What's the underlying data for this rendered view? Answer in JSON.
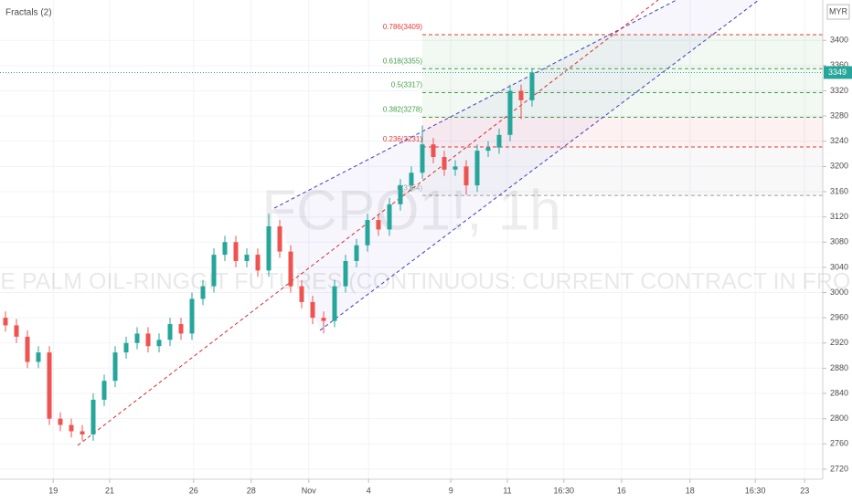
{
  "chart_data": {
    "type": "candlestick",
    "indicator_label": "Fractals (2)",
    "watermark_symbol": "FCPO1!, 1h",
    "watermark_name": "CRUDE PALM OIL-RINGGIT FUTURES (CONTINUOUS: CURRENT CONTRACT IN FRONT)",
    "currency": "MYR",
    "last_price": 3349,
    "up_color": "#26a69a",
    "down_color": "#ef5350",
    "x": [
      1,
      3,
      5,
      7,
      9,
      11,
      13,
      15,
      17,
      19,
      21,
      23,
      25,
      27,
      29,
      31,
      33,
      35,
      37,
      39,
      41,
      43,
      45,
      47,
      49,
      51,
      53,
      55,
      57,
      59,
      61,
      63,
      65,
      67,
      69,
      71,
      73,
      75,
      77,
      79,
      81,
      83,
      85,
      87,
      89,
      91,
      93,
      95,
      97
    ],
    "open": [
      2960,
      2948,
      2930,
      2890,
      2905,
      2800,
      2790,
      2780,
      2775,
      2830,
      2860,
      2905,
      2920,
      2935,
      2915,
      2925,
      2950,
      2935,
      2990,
      3010,
      3060,
      3080,
      3050,
      3060,
      3035,
      3105,
      3065,
      3010,
      2985,
      2960,
      2955,
      3010,
      3050,
      3075,
      3115,
      3100,
      3140,
      3170,
      3190,
      3235,
      3215,
      3195,
      3200,
      3170,
      3225,
      3230,
      3250,
      3320,
      3305
    ],
    "high": [
      2970,
      2958,
      2940,
      2915,
      2915,
      2810,
      2800,
      2790,
      2840,
      2870,
      2915,
      2930,
      2945,
      2945,
      2935,
      2960,
      2960,
      3000,
      3020,
      3070,
      3090,
      3090,
      3070,
      3070,
      3125,
      3115,
      3075,
      3020,
      2995,
      2970,
      3020,
      3060,
      3085,
      3125,
      3125,
      3150,
      3180,
      3200,
      3265,
      3245,
      3225,
      3210,
      3210,
      3235,
      3240,
      3260,
      3330,
      3330,
      3355
    ],
    "low": [
      2938,
      2920,
      2880,
      2880,
      2790,
      2780,
      2770,
      2765,
      2765,
      2820,
      2850,
      2895,
      2910,
      2905,
      2905,
      2915,
      2925,
      2925,
      2980,
      3000,
      3050,
      3040,
      3040,
      3025,
      3025,
      3055,
      3000,
      2975,
      2950,
      2935,
      2945,
      3000,
      3040,
      3065,
      3090,
      3090,
      3130,
      3160,
      3180,
      3205,
      3185,
      3185,
      3155,
      3160,
      3215,
      3220,
      3240,
      3275,
      3295
    ],
    "close": [
      2948,
      2930,
      2890,
      2905,
      2800,
      2790,
      2780,
      2775,
      2830,
      2860,
      2905,
      2920,
      2935,
      2915,
      2925,
      2950,
      2935,
      2990,
      3010,
      3060,
      3080,
      3050,
      3060,
      3035,
      3105,
      3065,
      3010,
      2985,
      2960,
      2955,
      3010,
      3050,
      3075,
      3115,
      3100,
      3140,
      3170,
      3190,
      3235,
      3215,
      3195,
      3200,
      3170,
      3225,
      3230,
      3250,
      3320,
      3305,
      3349
    ],
    "fib_levels": [
      {
        "label": "0.786(3409)",
        "value": 3409,
        "color": "#e53935"
      },
      {
        "label": "0.618(3355)",
        "value": 3355,
        "color": "#43a047"
      },
      {
        "label": "0.5(3317)",
        "value": 3317,
        "color": "#43a047"
      },
      {
        "label": "0.382(3278)",
        "value": 3278,
        "color": "#43a047"
      },
      {
        "label": "0.236(3231)",
        "value": 3231,
        "color": "#e53935"
      },
      {
        "label": "0(3154)",
        "value": 3154,
        "color": "#9e9e9e"
      }
    ],
    "xlim": [
      0,
      150
    ],
    "ylim": [
      2704,
      3464
    ],
    "yticks": [
      2720,
      2760,
      2800,
      2840,
      2880,
      2920,
      2960,
      3000,
      3040,
      3080,
      3120,
      3160,
      3200,
      3240,
      3280,
      3320,
      3360,
      3400
    ],
    "xticks": [
      {
        "value": 9.7,
        "label": "19"
      },
      {
        "value": 20,
        "label": "21"
      },
      {
        "value": 35.3,
        "label": "26"
      },
      {
        "value": 45.8,
        "label": "28"
      },
      {
        "value": 56.3,
        "label": "Nov"
      },
      {
        "value": 67.2,
        "label": "4"
      },
      {
        "value": 82.2,
        "label": "9"
      },
      {
        "value": 92.5,
        "label": "11"
      },
      {
        "value": 102.8,
        "label": "16:30"
      },
      {
        "value": 113.3,
        "label": "16"
      },
      {
        "value": 125.8,
        "label": "18"
      },
      {
        "value": 137.7,
        "label": "16:30"
      },
      {
        "value": 146.7,
        "label": "23"
      }
    ],
    "grid": true
  }
}
